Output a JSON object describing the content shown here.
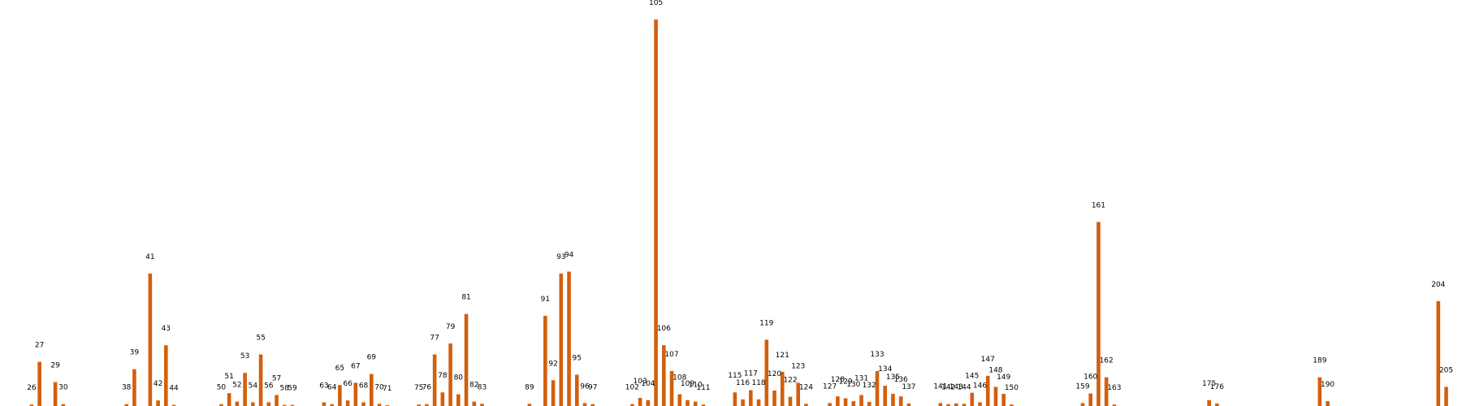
{
  "chart_data": {
    "type": "bar",
    "title": "",
    "xlabel": "",
    "ylabel": "",
    "grid": false,
    "legend": "none",
    "bar_color": "#d35f0c",
    "x_range": [
      22,
      207
    ],
    "ylim": [
      0,
      105
    ],
    "x": [
      26,
      27,
      29,
      30,
      38,
      39,
      41,
      42,
      43,
      44,
      50,
      51,
      52,
      53,
      54,
      55,
      56,
      57,
      58,
      59,
      63,
      64,
      65,
      66,
      67,
      68,
      69,
      70,
      71,
      75,
      76,
      77,
      78,
      79,
      80,
      81,
      82,
      83,
      89,
      91,
      92,
      93,
      94,
      95,
      96,
      97,
      102,
      103,
      104,
      105,
      106,
      107,
      108,
      109,
      110,
      111,
      115,
      116,
      117,
      118,
      119,
      120,
      121,
      122,
      123,
      124,
      127,
      128,
      129,
      130,
      131,
      132,
      133,
      134,
      135,
      136,
      137,
      141,
      142,
      143,
      144,
      145,
      146,
      147,
      148,
      149,
      150,
      159,
      160,
      161,
      162,
      163,
      175,
      176,
      189,
      190,
      204,
      205
    ],
    "values": [
      0.4,
      12,
      6.5,
      0.5,
      0.5,
      10,
      36,
      1.5,
      16.5,
      0.3,
      0.5,
      3.5,
      1.2,
      9,
      1,
      14,
      1,
      3,
      0.3,
      0.3,
      1,
      0.5,
      5.7,
      1.5,
      6.3,
      1,
      8.7,
      0.6,
      0.2,
      0.4,
      0.5,
      14,
      3.7,
      17,
      3.2,
      25,
      1.2,
      0.6,
      0.6,
      24.5,
      7,
      36,
      36.5,
      8.5,
      0.8,
      0.5,
      0.5,
      2.2,
      1.6,
      105,
      16.5,
      9.5,
      3.2,
      1.6,
      1.2,
      0.4,
      3.7,
      1.8,
      4.3,
      1.8,
      18,
      4.2,
      9.3,
      2.5,
      6.3,
      0.6,
      0.8,
      2.6,
      2.1,
      1.3,
      3,
      1.1,
      9.5,
      5.5,
      3.3,
      2.6,
      0.7,
      0.8,
      0.5,
      0.7,
      0.6,
      3.6,
      1,
      8.2,
      5.2,
      3.3,
      0.4,
      0.8,
      3.4,
      50,
      7.8,
      0.4,
      1.6,
      0.7,
      7.8,
      1.3,
      28.5,
      5.2
    ]
  }
}
